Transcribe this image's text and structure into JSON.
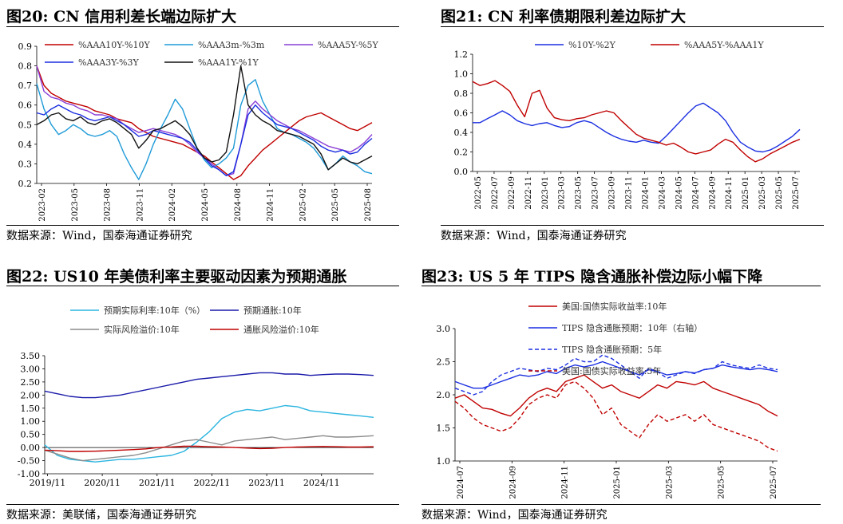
{
  "panels": [
    {
      "title": "图20:  CN 信用利差长端边际扩大",
      "source": "数据来源：Wind，国泰海通证券研究",
      "chart_data": {
        "type": "line",
        "ylim": [
          0.2,
          0.9
        ],
        "yticks": [
          "0.9",
          "0.8",
          "0.7",
          "0.6",
          "0.5",
          "0.4",
          "0.3",
          "0.2"
        ],
        "xticks": [
          "2023-02",
          "2023-05",
          "2023-08",
          "2023-11",
          "2024-02",
          "2024-05",
          "2024-08",
          "2024-11",
          "2025-02",
          "2025-05",
          "2025-08"
        ],
        "series": [
          {
            "name": "%AAA10Y-%10Y",
            "color": "#c00000",
            "values": [
              0.8,
              0.7,
              0.66,
              0.64,
              0.62,
              0.61,
              0.6,
              0.59,
              0.57,
              0.56,
              0.55,
              0.53,
              0.52,
              0.51,
              0.48,
              0.46,
              0.44,
              0.43,
              0.42,
              0.41,
              0.4,
              0.38,
              0.36,
              0.34,
              0.31,
              0.28,
              0.25,
              0.22,
              0.24,
              0.29,
              0.33,
              0.37,
              0.4,
              0.43,
              0.46,
              0.49,
              0.52,
              0.54,
              0.55,
              0.56,
              0.54,
              0.52,
              0.5,
              0.48,
              0.47,
              0.49,
              0.51
            ]
          },
          {
            "name": "%AAA3m-%3m",
            "color": "#1f9bd8",
            "values": [
              0.71,
              0.58,
              0.5,
              0.45,
              0.47,
              0.5,
              0.48,
              0.45,
              0.44,
              0.45,
              0.47,
              0.44,
              0.35,
              0.28,
              0.22,
              0.3,
              0.4,
              0.48,
              0.55,
              0.63,
              0.58,
              0.48,
              0.38,
              0.32,
              0.28,
              0.3,
              0.33,
              0.38,
              0.6,
              0.7,
              0.73,
              0.62,
              0.55,
              0.48,
              0.46,
              0.45,
              0.43,
              0.41,
              0.38,
              0.33,
              0.27,
              0.3,
              0.34,
              0.31,
              0.29,
              0.26,
              0.25
            ]
          },
          {
            "name": "%AAA5Y-%5Y",
            "color": "#8a3fd6",
            "values": [
              0.8,
              0.67,
              0.64,
              0.63,
              0.61,
              0.6,
              0.58,
              0.57,
              0.55,
              0.55,
              0.54,
              0.53,
              0.5,
              0.48,
              0.46,
              0.47,
              0.48,
              0.47,
              0.46,
              0.45,
              0.43,
              0.4,
              0.36,
              0.33,
              0.3,
              0.27,
              0.24,
              0.25,
              0.4,
              0.58,
              0.62,
              0.58,
              0.55,
              0.52,
              0.5,
              0.48,
              0.47,
              0.45,
              0.43,
              0.41,
              0.39,
              0.38,
              0.37,
              0.36,
              0.38,
              0.41,
              0.45
            ]
          },
          {
            "name": "%AAA3Y-%3Y",
            "color": "#1a2ee0",
            "values": [
              0.56,
              0.55,
              0.58,
              0.6,
              0.58,
              0.56,
              0.55,
              0.53,
              0.52,
              0.53,
              0.54,
              0.52,
              0.5,
              0.47,
              0.44,
              0.45,
              0.47,
              0.46,
              0.45,
              0.44,
              0.43,
              0.41,
              0.37,
              0.33,
              0.29,
              0.27,
              0.24,
              0.26,
              0.4,
              0.55,
              0.6,
              0.56,
              0.53,
              0.5,
              0.49,
              0.48,
              0.46,
              0.44,
              0.42,
              0.39,
              0.37,
              0.36,
              0.37,
              0.35,
              0.36,
              0.4,
              0.43
            ]
          },
          {
            "name": "%AAA1Y-%1Y",
            "color": "#111111",
            "values": [
              0.5,
              0.52,
              0.55,
              0.56,
              0.53,
              0.52,
              0.54,
              0.51,
              0.5,
              0.52,
              0.53,
              0.51,
              0.48,
              0.45,
              0.38,
              0.42,
              0.47,
              0.48,
              0.5,
              0.52,
              0.49,
              0.45,
              0.38,
              0.33,
              0.31,
              0.32,
              0.36,
              0.55,
              0.8,
              0.6,
              0.55,
              0.52,
              0.5,
              0.47,
              0.46,
              0.45,
              0.44,
              0.42,
              0.4,
              0.35,
              0.27,
              0.3,
              0.33,
              0.31,
              0.3,
              0.32,
              0.34
            ]
          }
        ]
      }
    },
    {
      "title": "图21:  CN 利率债期限利差边际扩大",
      "source": "数据来源：Wind，国泰海通证券研究",
      "chart_data": {
        "type": "line",
        "ylim": [
          0.0,
          1.2
        ],
        "yticks": [
          "1.2",
          "1.0",
          "0.8",
          "0.6",
          "0.4",
          "0.2",
          "0.0"
        ],
        "xticks": [
          "2022-05",
          "2022-07",
          "2022-09",
          "2022-11",
          "2023-01",
          "2023-03",
          "2023-05",
          "2023-07",
          "2023-09",
          "2023-11",
          "2024-01",
          "2024-03",
          "2024-05",
          "2024-07",
          "2024-09",
          "2024-11",
          "2025-01",
          "2025-03",
          "2025-05",
          "2025-07"
        ],
        "series": [
          {
            "name": "%10Y-%2Y",
            "color": "#1a2ee0",
            "values": [
              0.5,
              0.5,
              0.54,
              0.58,
              0.62,
              0.58,
              0.52,
              0.49,
              0.47,
              0.49,
              0.5,
              0.47,
              0.45,
              0.46,
              0.5,
              0.52,
              0.5,
              0.45,
              0.4,
              0.36,
              0.33,
              0.31,
              0.3,
              0.32,
              0.3,
              0.29,
              0.36,
              0.44,
              0.52,
              0.6,
              0.67,
              0.7,
              0.65,
              0.6,
              0.52,
              0.4,
              0.3,
              0.25,
              0.21,
              0.2,
              0.22,
              0.26,
              0.31,
              0.36,
              0.43
            ]
          },
          {
            "name": "%AAA5Y-%AAA1Y",
            "color": "#c00000",
            "values": [
              0.92,
              0.88,
              0.9,
              0.93,
              0.88,
              0.82,
              0.68,
              0.56,
              0.8,
              0.83,
              0.65,
              0.55,
              0.53,
              0.52,
              0.54,
              0.55,
              0.58,
              0.6,
              0.62,
              0.6,
              0.52,
              0.45,
              0.38,
              0.34,
              0.32,
              0.3,
              0.27,
              0.29,
              0.25,
              0.2,
              0.18,
              0.2,
              0.22,
              0.28,
              0.33,
              0.3,
              0.22,
              0.15,
              0.1,
              0.13,
              0.18,
              0.22,
              0.26,
              0.3,
              0.33
            ]
          }
        ]
      }
    },
    {
      "title": "图22:  US10 年美债利率主要驱动因素为预期通胀",
      "source": "数据来源：美联储，国泰海通证券研究",
      "chart_data": {
        "type": "line",
        "ylim": [
          -1.0,
          3.5
        ],
        "yticks": [
          "3.50",
          "3.00",
          "2.50",
          "2.00",
          "1.50",
          "1.00",
          "0.50",
          "0.00",
          "-0.50",
          "-1.00"
        ],
        "xticks": [
          "2019/11",
          "2020/11",
          "2021/11",
          "2022/11",
          "2023/11",
          "2024/11"
        ],
        "series": [
          {
            "name": "预期实际利率:10年（%）",
            "color": "#2bb5e0",
            "values": [
              0.1,
              -0.3,
              -0.45,
              -0.5,
              -0.55,
              -0.5,
              -0.45,
              -0.45,
              -0.4,
              -0.35,
              -0.3,
              -0.15,
              0.2,
              0.6,
              1.1,
              1.35,
              1.45,
              1.4,
              1.5,
              1.6,
              1.55,
              1.4,
              1.35,
              1.3,
              1.25,
              1.2,
              1.15
            ]
          },
          {
            "name": "预期通胀:10年",
            "color": "#1a1aaa",
            "values": [
              2.15,
              2.05,
              1.95,
              1.9,
              1.9,
              1.95,
              2.0,
              2.1,
              2.2,
              2.3,
              2.4,
              2.5,
              2.6,
              2.65,
              2.7,
              2.75,
              2.8,
              2.85,
              2.85,
              2.8,
              2.8,
              2.75,
              2.78,
              2.8,
              2.8,
              2.78,
              2.75
            ]
          },
          {
            "name": "实际风险溢价:10年",
            "color": "#8c8c8c",
            "values": [
              -0.1,
              -0.25,
              -0.4,
              -0.5,
              -0.45,
              -0.4,
              -0.35,
              -0.3,
              -0.2,
              -0.05,
              0.1,
              0.25,
              0.3,
              0.2,
              0.1,
              0.25,
              0.3,
              0.35,
              0.4,
              0.3,
              0.35,
              0.4,
              0.45,
              0.4,
              0.4,
              0.42,
              0.45
            ]
          },
          {
            "name": "通胀风险溢价:10年",
            "color": "#c00000",
            "values": [
              -0.1,
              -0.12,
              -0.15,
              -0.15,
              -0.14,
              -0.12,
              -0.1,
              -0.08,
              -0.05,
              0.0,
              0.02,
              0.05,
              0.05,
              0.03,
              0.02,
              0.0,
              -0.02,
              -0.04,
              -0.03,
              0.0,
              0.02,
              0.03,
              0.04,
              0.03,
              0.02,
              0.02,
              0.03
            ]
          }
        ]
      }
    },
    {
      "title": "图23:  US 5 年 TIPS 隐含通胀补偿边际小幅下降",
      "source": "数据来源：Wind，国泰海通证券研究",
      "chart_data": {
        "type": "line",
        "ylim": [
          1.0,
          3.0
        ],
        "yticks": [
          "3.0",
          "2.5",
          "2.0",
          "1.5",
          "1.0"
        ],
        "xticks": [
          "2024-07",
          "2024-09",
          "2024-11",
          "2025-01",
          "2025-03",
          "2025-05",
          "2025-07"
        ],
        "series": [
          {
            "name": "美国:国债实际收益率:10年",
            "color": "#c00000",
            "dash": false,
            "values": [
              1.95,
              2.0,
              1.9,
              1.8,
              1.78,
              1.72,
              1.68,
              1.8,
              1.95,
              2.05,
              2.1,
              2.05,
              2.2,
              2.25,
              2.3,
              2.2,
              2.1,
              2.15,
              2.05,
              2.0,
              1.95,
              2.05,
              2.15,
              2.1,
              2.2,
              2.18,
              2.15,
              2.2,
              2.1,
              2.05,
              2.0,
              1.95,
              1.9,
              1.85,
              1.75,
              1.68
            ]
          },
          {
            "name": "TIPS 隐含通胀预期：10年（右轴）",
            "color": "#1a2ee0",
            "dash": false,
            "values": [
              2.2,
              2.15,
              2.1,
              2.1,
              2.15,
              2.2,
              2.25,
              2.3,
              2.28,
              2.3,
              2.35,
              2.32,
              2.4,
              2.45,
              2.42,
              2.45,
              2.5,
              2.45,
              2.4,
              2.35,
              2.3,
              2.38,
              2.35,
              2.3,
              2.32,
              2.35,
              2.33,
              2.38,
              2.4,
              2.45,
              2.42,
              2.4,
              2.38,
              2.4,
              2.38,
              2.35
            ]
          },
          {
            "name": "TIPS 隐含通胀预期：5年",
            "color": "#1a2ee0",
            "dash": true,
            "values": [
              2.1,
              2.05,
              2.0,
              2.05,
              2.2,
              2.3,
              2.35,
              2.4,
              2.38,
              2.35,
              2.4,
              2.38,
              2.45,
              2.55,
              2.5,
              2.5,
              2.6,
              2.55,
              2.45,
              2.35,
              2.25,
              2.4,
              2.35,
              2.25,
              2.3,
              2.35,
              2.32,
              2.38,
              2.4,
              2.5,
              2.45,
              2.42,
              2.4,
              2.45,
              2.4,
              2.38
            ]
          },
          {
            "name": "美国:国债实际收益率:5年",
            "color": "#c00000",
            "dash": true,
            "values": [
              1.9,
              1.8,
              1.65,
              1.55,
              1.5,
              1.45,
              1.5,
              1.65,
              1.85,
              1.95,
              2.0,
              1.95,
              2.15,
              2.2,
              2.1,
              1.95,
              1.7,
              1.8,
              1.55,
              1.45,
              1.35,
              1.55,
              1.7,
              1.6,
              1.65,
              1.7,
              1.6,
              1.7,
              1.55,
              1.5,
              1.45,
              1.4,
              1.35,
              1.3,
              1.2,
              1.15
            ]
          }
        ]
      }
    }
  ]
}
